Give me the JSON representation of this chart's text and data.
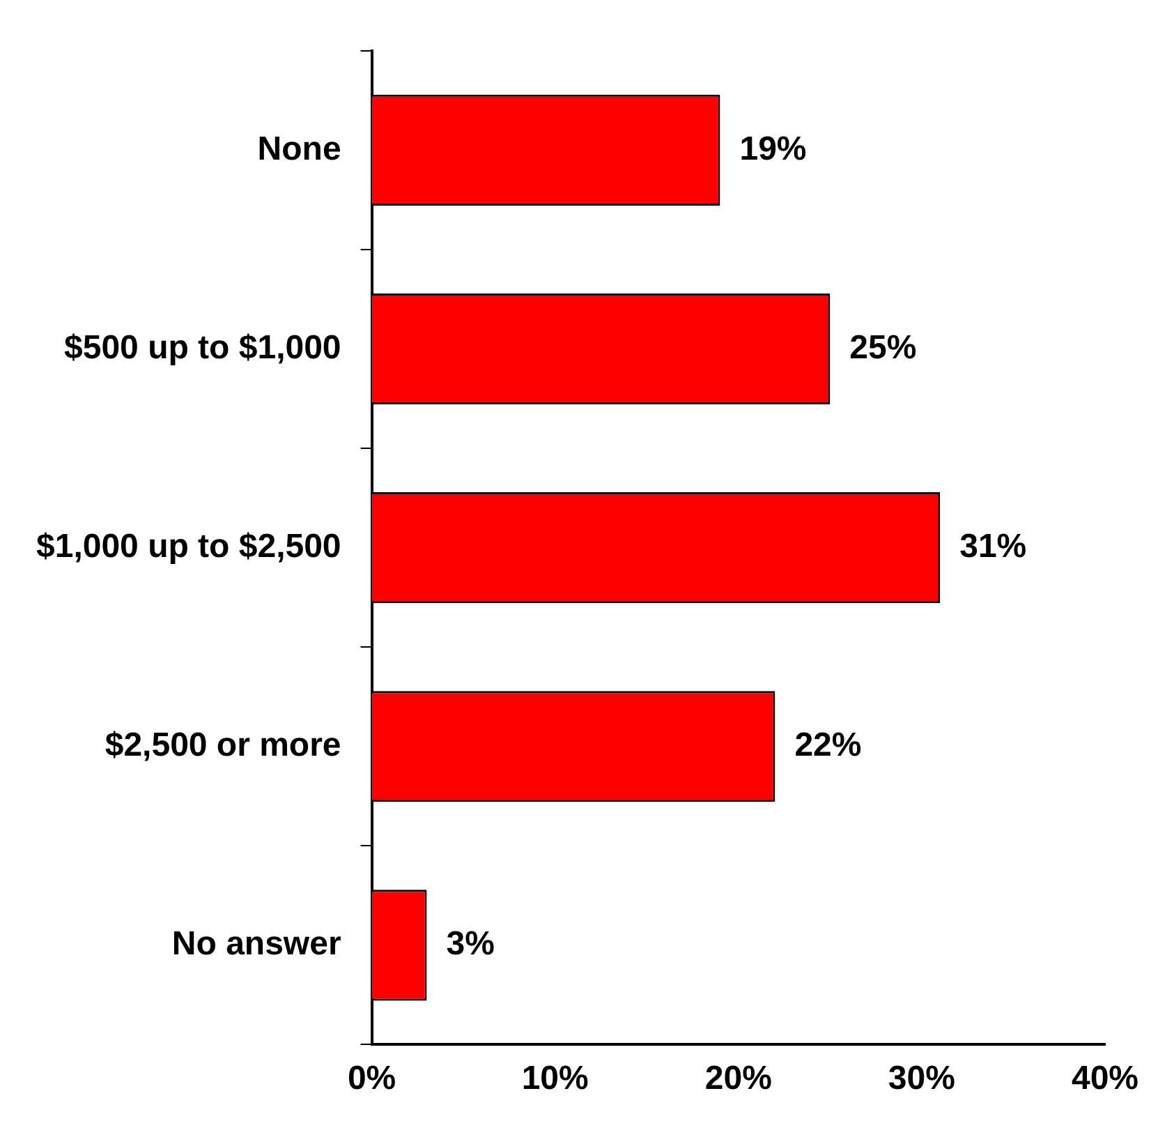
{
  "chart_data": {
    "type": "bar",
    "orientation": "horizontal",
    "categories": [
      "None",
      "$500 up to $1,000",
      "$1,000 up to $2,500",
      "$2,500 or more",
      "No answer"
    ],
    "values": [
      19,
      25,
      31,
      22,
      3
    ],
    "value_labels": [
      "19%",
      "25%",
      "31%",
      "22%",
      "3%"
    ],
    "color": "#ff0000",
    "xlim": [
      0,
      40
    ],
    "xticks": [
      {
        "value": 0,
        "label": "0%"
      },
      {
        "value": 10,
        "label": "10%"
      },
      {
        "value": 20,
        "label": "20%"
      },
      {
        "value": 30,
        "label": "30%"
      },
      {
        "value": 40,
        "label": "40%"
      }
    ],
    "grid": false,
    "legend": false
  }
}
